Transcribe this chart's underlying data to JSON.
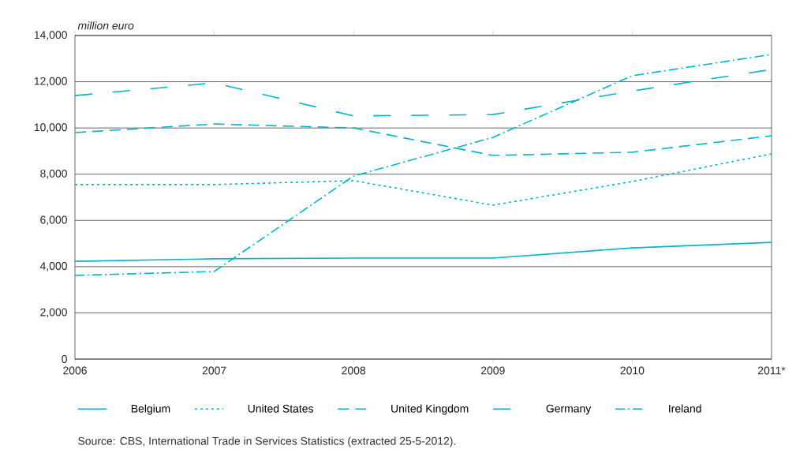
{
  "chart_data": {
    "type": "line",
    "ylabel": "million euro",
    "categories": [
      "2006",
      "2007",
      "2008",
      "2009",
      "2010",
      "2011*"
    ],
    "series": [
      {
        "name": "Belgium",
        "color": "#00b5c8",
        "line_style": "solid",
        "values": [
          4230,
          4340,
          4370,
          4370,
          4810,
          5050
        ]
      },
      {
        "name": "United States",
        "color": "#00b5c8",
        "line_style": "dotted",
        "values": [
          7550,
          7550,
          7720,
          6660,
          7680,
          8880
        ]
      },
      {
        "name": "United Kingdom",
        "color": "#00b5c8",
        "line_style": "dashed",
        "values": [
          9800,
          10170,
          10000,
          8810,
          8950,
          9660
        ]
      },
      {
        "name": "Germany",
        "color": "#00b5c8",
        "line_style": "longdash",
        "values": [
          11400,
          11950,
          10520,
          10580,
          11600,
          12530
        ]
      },
      {
        "name": "Ireland",
        "color": "#00b5c8",
        "line_style": "dashdot",
        "values": [
          3620,
          3790,
          7920,
          9590,
          12260,
          13180
        ]
      }
    ],
    "ylim": [
      0,
      14000
    ],
    "yticks": [
      {
        "value": 0,
        "label": "0"
      },
      {
        "value": 2000,
        "label": "2,000"
      },
      {
        "value": 4000,
        "label": "4,000"
      },
      {
        "value": 6000,
        "label": "6,000"
      },
      {
        "value": 8000,
        "label": "8,000"
      },
      {
        "value": 10000,
        "label": "10,000"
      },
      {
        "value": 12000,
        "label": "12,000"
      },
      {
        "value": 14000,
        "label": "14,000"
      }
    ],
    "grid": "y",
    "legend": "bottom",
    "marker": "none",
    "annotations": [
      "Source: CBS, International Trade in Services Statistics (extracted 25-5-2012)."
    ]
  }
}
